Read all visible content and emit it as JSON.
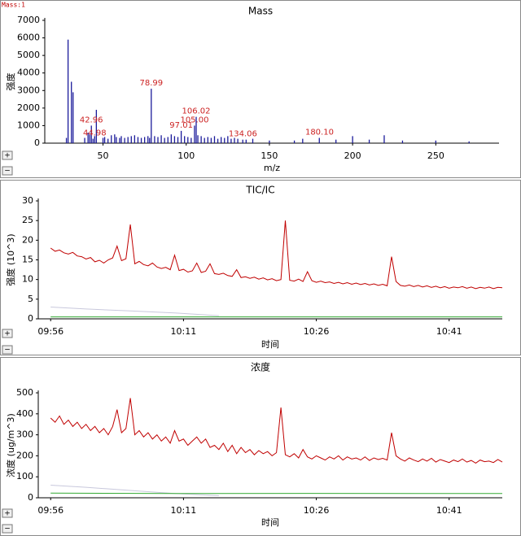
{
  "ui": {
    "corner_label": "Mass:1",
    "zoom_in": "+",
    "zoom_out": "−"
  },
  "chart_data": [
    {
      "type": "bar",
      "title": "Mass",
      "ylabel": "强度",
      "xlabel": "m/z",
      "color": "#1a1a9a",
      "x": [
        28,
        29,
        31,
        32,
        39,
        41,
        42,
        43,
        44,
        45,
        46,
        50,
        51,
        53,
        55,
        57,
        58,
        60,
        61,
        63,
        65,
        67,
        69,
        71,
        73,
        75,
        77,
        78,
        79,
        81,
        83,
        85,
        87,
        89,
        91,
        93,
        95,
        97,
        99,
        101,
        103,
        105,
        106,
        107,
        109,
        111,
        113,
        115,
        117,
        119,
        121,
        123,
        125,
        127,
        129,
        131,
        134,
        136,
        140,
        150,
        165,
        170,
        180,
        190,
        200,
        210,
        219,
        230,
        250,
        270
      ],
      "values": [
        300,
        5900,
        3500,
        2900,
        300,
        600,
        500,
        1000,
        250,
        400,
        1900,
        300,
        350,
        250,
        450,
        500,
        350,
        300,
        400,
        300,
        350,
        400,
        450,
        350,
        300,
        350,
        400,
        300,
        3100,
        400,
        350,
        450,
        300,
        350,
        500,
        400,
        350,
        700,
        400,
        350,
        300,
        1000,
        1500,
        450,
        400,
        300,
        350,
        300,
        400,
        250,
        350,
        300,
        400,
        250,
        300,
        250,
        200,
        200,
        250,
        150,
        150,
        250,
        300,
        200,
        400,
        200,
        450,
        150,
        150,
        100
      ],
      "annotations": [
        {
          "text": "42.96",
          "x": 42.96,
          "y": 1000
        },
        {
          "text": "44.98",
          "x": 44.98,
          "y": 250
        },
        {
          "text": "78.99",
          "x": 78.99,
          "y": 3100
        },
        {
          "text": "97.01",
          "x": 97.01,
          "y": 700
        },
        {
          "text": "105.00",
          "x": 105.0,
          "y": 1000
        },
        {
          "text": "106.02",
          "x": 106.02,
          "y": 1500
        },
        {
          "text": "134.06",
          "x": 134.06,
          "y": 200
        },
        {
          "text": "180.10",
          "x": 180.1,
          "y": 300
        }
      ],
      "annotation_color": "#cc2222",
      "xlim": [
        15,
        288
      ],
      "xticks": [
        50,
        100,
        150,
        200,
        250
      ],
      "ylim": [
        0,
        7000
      ],
      "yticks": [
        0,
        1000,
        2000,
        3000,
        4000,
        5000,
        6000,
        7000
      ]
    },
    {
      "type": "line",
      "title": "TIC/IC",
      "ylabel": "强度 (10^3)",
      "xlabel": "时间",
      "x": [
        596,
        596.5,
        597,
        597.5,
        598,
        598.5,
        599,
        599.5,
        600,
        600.5,
        601,
        601.5,
        602,
        602.5,
        603,
        603.5,
        604,
        604.5,
        605,
        605.5,
        606,
        606.5,
        607,
        607.5,
        608,
        608.5,
        609,
        609.5,
        610,
        610.5,
        611,
        611.5,
        612,
        612.5,
        613,
        613.5,
        614,
        614.5,
        615,
        615.5,
        616,
        616.5,
        617,
        617.5,
        618,
        618.5,
        619,
        619.5,
        620,
        620.5,
        621,
        621.5,
        622,
        622.5,
        623,
        623.5,
        624,
        624.5,
        625,
        625.5,
        626,
        626.5,
        627,
        627.5,
        628,
        628.5,
        629,
        629.5,
        630,
        630.5,
        631,
        631.5,
        632,
        632.5,
        633,
        633.5,
        634,
        634.5,
        635,
        635.5,
        636,
        636.5,
        637,
        637.5,
        638,
        638.5,
        639,
        639.5,
        640,
        640.5,
        641,
        641.5,
        642,
        642.5,
        643,
        643.5,
        644,
        644.5,
        645,
        645.5,
        646,
        646.5,
        647
      ],
      "series": [
        {
          "color": "#c8c8dc",
          "x": [
            596,
            600,
            605,
            610,
            615
          ],
          "values": [
            3,
            2.5,
            2,
            1.5,
            0.8
          ]
        },
        {
          "color": "#c00000",
          "values": [
            18,
            17.2,
            17.5,
            16.8,
            16.5,
            16.9,
            16,
            15.8,
            15.2,
            15.6,
            14.5,
            14.9,
            14.2,
            15,
            15.5,
            18.5,
            14.8,
            15.3,
            24,
            14,
            14.6,
            13.8,
            13.5,
            14.2,
            13.2,
            12.8,
            13.1,
            12.5,
            16.2,
            12.3,
            12.6,
            11.9,
            12.2,
            14.2,
            11.8,
            12.1,
            14,
            11.5,
            11.3,
            11.6,
            11,
            10.8,
            12.5,
            10.5,
            10.7,
            10.3,
            10.6,
            10.1,
            10.4,
            9.9,
            10.2,
            9.7,
            10,
            25,
            9.8,
            9.6,
            10.1,
            9.5,
            12,
            9.7,
            9.3,
            9.6,
            9.2,
            9.4,
            9,
            9.3,
            8.9,
            9.2,
            8.8,
            9.1,
            8.7,
            9,
            8.6,
            8.9,
            8.5,
            8.8,
            8.4,
            15.8,
            9.5,
            8.5,
            8.3,
            8.6,
            8.2,
            8.5,
            8.1,
            8.4,
            8.0,
            8.3,
            7.9,
            8.2,
            7.8,
            8.1,
            7.9,
            8.2,
            7.8,
            8.1,
            7.7,
            8.0,
            7.8,
            8.1,
            7.7,
            8,
            7.9
          ]
        },
        {
          "color": "#33aa33",
          "x": [
            596,
            647
          ],
          "values": [
            0.5,
            0.5
          ]
        }
      ],
      "xlim": [
        594.6,
        647
      ],
      "xticks": [
        {
          "value": 596,
          "label": "09:56"
        },
        {
          "value": 611,
          "label": "10:11"
        },
        {
          "value": 626,
          "label": "10:26"
        },
        {
          "value": 641,
          "label": "10:41"
        }
      ],
      "ylim": [
        0,
        30
      ],
      "yticks": [
        0,
        5,
        10,
        15,
        20,
        25,
        30
      ]
    },
    {
      "type": "line",
      "title": "浓度",
      "ylabel": "浓度 (ug/m^3)",
      "xlabel": "时间",
      "x": [
        596,
        596.5,
        597,
        597.5,
        598,
        598.5,
        599,
        599.5,
        600,
        600.5,
        601,
        601.5,
        602,
        602.5,
        603,
        603.5,
        604,
        604.5,
        605,
        605.5,
        606,
        606.5,
        607,
        607.5,
        608,
        608.5,
        609,
        609.5,
        610,
        610.5,
        611,
        611.5,
        612,
        612.5,
        613,
        613.5,
        614,
        614.5,
        615,
        615.5,
        616,
        616.5,
        617,
        617.5,
        618,
        618.5,
        619,
        619.5,
        620,
        620.5,
        621,
        621.5,
        622,
        622.5,
        623,
        623.5,
        624,
        624.5,
        625,
        625.5,
        626,
        626.5,
        627,
        627.5,
        628,
        628.5,
        629,
        629.5,
        630,
        630.5,
        631,
        631.5,
        632,
        632.5,
        633,
        633.5,
        634,
        634.5,
        635,
        635.5,
        636,
        636.5,
        637,
        637.5,
        638,
        638.5,
        639,
        639.5,
        640,
        640.5,
        641,
        641.5,
        642,
        642.5,
        643,
        643.5,
        644,
        644.5,
        645,
        645.5,
        646,
        646.5,
        647
      ],
      "series": [
        {
          "color": "#c8c8dc",
          "x": [
            596,
            600,
            605,
            610,
            615
          ],
          "values": [
            60,
            50,
            35,
            20,
            10
          ]
        },
        {
          "color": "#c00000",
          "values": [
            380,
            360,
            390,
            350,
            370,
            340,
            360,
            330,
            350,
            320,
            340,
            310,
            330,
            300,
            340,
            420,
            310,
            330,
            475,
            300,
            320,
            290,
            310,
            280,
            300,
            270,
            290,
            260,
            320,
            270,
            280,
            250,
            270,
            290,
            260,
            280,
            240,
            250,
            230,
            260,
            220,
            250,
            210,
            240,
            215,
            230,
            205,
            225,
            210,
            220,
            200,
            215,
            430,
            205,
            195,
            210,
            190,
            230,
            195,
            185,
            200,
            190,
            180,
            195,
            185,
            200,
            180,
            195,
            185,
            190,
            180,
            195,
            178,
            190,
            182,
            188,
            180,
            310,
            200,
            185,
            175,
            190,
            180,
            172,
            185,
            175,
            188,
            170,
            182,
            175,
            168,
            180,
            172,
            185,
            170,
            178,
            165,
            180,
            172,
            175,
            168,
            182,
            170
          ]
        },
        {
          "color": "#33aa33",
          "x": [
            596,
            610,
            625,
            647
          ],
          "values": [
            22,
            20,
            21,
            20
          ]
        }
      ],
      "xlim": [
        594.6,
        647
      ],
      "xticks": [
        {
          "value": 596,
          "label": "09:56"
        },
        {
          "value": 611,
          "label": "10:11"
        },
        {
          "value": 626,
          "label": "10:26"
        },
        {
          "value": 641,
          "label": "10:41"
        }
      ],
      "ylim": [
        0,
        500
      ],
      "yticks": [
        0,
        100,
        200,
        300,
        400,
        500
      ]
    }
  ]
}
